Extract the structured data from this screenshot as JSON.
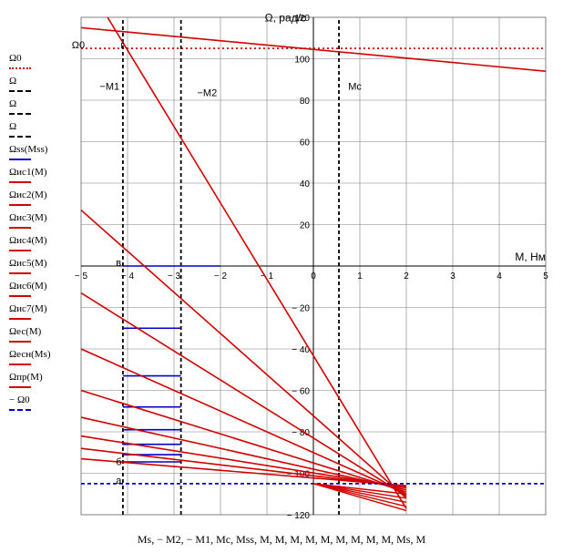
{
  "chart_data": {
    "type": "line",
    "xlabel": "M, Нм",
    "ylabel": "Ω, рад/с",
    "xlim": [
      -5,
      5
    ],
    "ylim": [
      -120,
      120
    ],
    "xticks": [
      -5,
      -4,
      -3,
      -2,
      -1,
      0,
      1,
      2,
      3,
      4,
      5
    ],
    "yticks": [
      -120,
      -100,
      -80,
      -60,
      -40,
      -20,
      0,
      20,
      40,
      60,
      80,
      100,
      120
    ],
    "xtick_labels": [
      "− 5",
      "− 4",
      "− 3",
      "− 2",
      "− 1",
      "0",
      "1",
      "2",
      "3",
      "4",
      "5"
    ],
    "ytick_labels": [
      "− 120",
      "− 100",
      "− 80",
      "− 60",
      "− 40",
      "− 20",
      "",
      "20",
      "40",
      "60",
      "80",
      "100",
      "120"
    ],
    "grid": true,
    "x_axis_caption": "Ms, − M2, − M1, Mc, Mss, M, M, M, M, M, M, M, M, M, Ms, M",
    "annotations": [
      {
        "text": "Ω0",
        "x": -5.2,
        "y": 105
      },
      {
        "text": "г",
        "x": -4.15,
        "y": 105
      },
      {
        "text": "−M1",
        "x": -4.6,
        "y": 85
      },
      {
        "text": "−M2",
        "x": -2.5,
        "y": 82
      },
      {
        "text": "Mc",
        "x": 0.75,
        "y": 85
      },
      {
        "text": "в",
        "x": -4.25,
        "y": 0
      },
      {
        "text": "б",
        "x": -4.25,
        "y": -96
      },
      {
        "text": "а",
        "x": -4.25,
        "y": -105
      }
    ],
    "series": [
      {
        "name": "Ω0",
        "style": "dotted",
        "color": "#d40000",
        "x": [
          -5,
          5
        ],
        "y": [
          105,
          105
        ]
      },
      {
        "name": "Ω",
        "style": "dashed",
        "color": "#000000",
        "x": [
          -4.1,
          -4.1
        ],
        "y": [
          -120,
          120
        ]
      },
      {
        "name": "Ω",
        "style": "dashed",
        "color": "#000000",
        "x": [
          -2.85,
          -2.85
        ],
        "y": [
          -120,
          120
        ]
      },
      {
        "name": "Ω",
        "style": "dashed",
        "color": "#000000",
        "x": [
          0.55,
          0.55
        ],
        "y": [
          -120,
          120
        ]
      },
      {
        "name": "Ωss(Mss)",
        "style": "solid",
        "color": "#0000c8",
        "segments": [
          {
            "x": [
              -4.1,
              -2.0
            ],
            "y": [
              0,
              0
            ]
          },
          {
            "x": [
              -4.1,
              -2.85
            ],
            "y": [
              -30,
              -30
            ]
          },
          {
            "x": [
              -4.1,
              -2.85
            ],
            "y": [
              -53,
              -53
            ]
          },
          {
            "x": [
              -4.1,
              -2.85
            ],
            "y": [
              -68,
              -68
            ]
          },
          {
            "x": [
              -4.1,
              -2.85
            ],
            "y": [
              -79,
              -79
            ]
          },
          {
            "x": [
              -4.1,
              -2.85
            ],
            "y": [
              -86,
              -86
            ]
          },
          {
            "x": [
              -4.1,
              -2.85
            ],
            "y": [
              -91,
              -91
            ]
          },
          {
            "x": [
              -4.1,
              -2.85
            ],
            "y": [
              -94.5,
              -94.5
            ]
          }
        ]
      },
      {
        "name": "Ωис1(M)",
        "style": "solid",
        "color": "#d40000",
        "x": [
          -4.43,
          2
        ],
        "y": [
          120,
          -117
        ]
      },
      {
        "name": "Ωис2(M)",
        "style": "solid",
        "color": "#d40000",
        "x": [
          -5,
          2
        ],
        "y": [
          27,
          -112
        ]
      },
      {
        "name": "Ωис3(M)",
        "style": "solid",
        "color": "#d40000",
        "x": [
          -5,
          2
        ],
        "y": [
          -13,
          -111
        ]
      },
      {
        "name": "Ωис4(M)",
        "style": "solid",
        "color": "#d40000",
        "x": [
          -5,
          2
        ],
        "y": [
          -40,
          -110
        ]
      },
      {
        "name": "Ωис5(M)",
        "style": "solid",
        "color": "#d40000",
        "x": [
          -5,
          2
        ],
        "y": [
          -60,
          -109
        ]
      },
      {
        "name": "Ωис6(M)",
        "style": "solid",
        "color": "#d40000",
        "x": [
          -5,
          2
        ],
        "y": [
          -73,
          -108
        ]
      },
      {
        "name": "Ωис7(M)",
        "style": "solid",
        "color": "#d40000",
        "x": [
          -5,
          2
        ],
        "y": [
          -82,
          -107
        ]
      },
      {
        "name": "Ωес(M)",
        "style": "solid",
        "color": "#d40000",
        "x": [
          -5,
          2
        ],
        "y": [
          -88,
          -106.5
        ]
      },
      {
        "name": "Ωесн(Ms)",
        "style": "solid",
        "color": "#d40000",
        "x": [
          -5,
          2
        ],
        "y": [
          -93,
          -106
        ]
      },
      {
        "name": "Ωпр(M)",
        "style": "solid",
        "color": "#d40000",
        "x": [
          -5,
          5
        ],
        "y": [
          115,
          94
        ]
      },
      {
        "name": "− Ω0",
        "style": "dashed",
        "color": "#0000c8",
        "x": [
          -5,
          5
        ],
        "y": [
          -105,
          -105
        ]
      }
    ]
  },
  "legend": [
    {
      "label": "Ω0",
      "color": "#d40000",
      "style": "dotted"
    },
    {
      "label": "Ω",
      "color": "#000000",
      "style": "dashed"
    },
    {
      "label": "Ω",
      "color": "#000000",
      "style": "dashed"
    },
    {
      "label": "Ω",
      "color": "#000000",
      "style": "dashed"
    },
    {
      "label": "Ωss(Mss)",
      "color": "#0000c8",
      "style": "solid"
    },
    {
      "label": "Ωис1(M)",
      "color": "#d40000",
      "style": "solid"
    },
    {
      "label": "Ωис2(M)",
      "color": "#d40000",
      "style": "solid"
    },
    {
      "label": "Ωис3(M)",
      "color": "#d40000",
      "style": "solid"
    },
    {
      "label": "Ωис4(M)",
      "color": "#d40000",
      "style": "solid"
    },
    {
      "label": "Ωис5(M)",
      "color": "#d40000",
      "style": "solid"
    },
    {
      "label": "Ωис6(M)",
      "color": "#d40000",
      "style": "solid"
    },
    {
      "label": "Ωис7(M)",
      "color": "#d40000",
      "style": "solid"
    },
    {
      "label": "Ωес(M)",
      "color": "#d40000",
      "style": "solid"
    },
    {
      "label": "Ωесн(Ms)",
      "color": "#d40000",
      "style": "solid"
    },
    {
      "label": "Ωпр(M)",
      "color": "#d40000",
      "style": "solid"
    },
    {
      "label": "− Ω0",
      "color": "#0000c8",
      "style": "dashed"
    }
  ],
  "extra_lines": [
    {
      "x": [
        0,
        2
      ],
      "y": [
        -105,
        -110
      ]
    },
    {
      "x": [
        0,
        2
      ],
      "y": [
        -105,
        -112
      ]
    },
    {
      "x": [
        0,
        2
      ],
      "y": [
        -105,
        -114
      ]
    },
    {
      "x": [
        0,
        2
      ],
      "y": [
        -105,
        -116
      ]
    },
    {
      "x": [
        0,
        2
      ],
      "y": [
        -105,
        -118
      ]
    }
  ]
}
